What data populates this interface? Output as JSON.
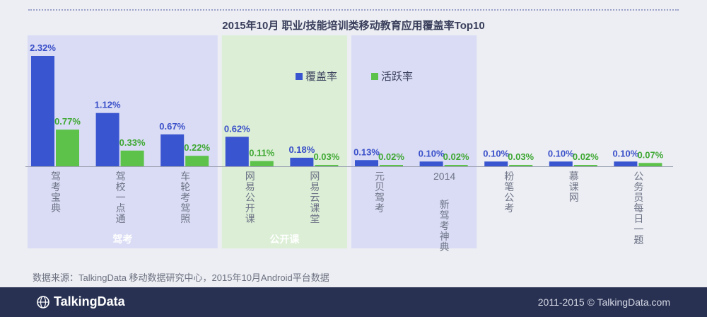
{
  "chart_data": {
    "type": "bar",
    "title": "2015年10月  职业/技能培训类移动教育应用覆盖率Top10",
    "categories": [
      "驾考宝典",
      "驾校一点通",
      "车轮考驾照",
      "网易公开课",
      "网易云课堂",
      "元贝驾考",
      "2014 新驾考神典",
      "粉笔公考",
      "慕课网",
      "公务员每日一题"
    ],
    "series": [
      {
        "name": "覆盖率",
        "color": "#3a55d0",
        "values": [
          2.32,
          1.12,
          0.67,
          0.62,
          0.18,
          0.13,
          0.1,
          0.1,
          0.1,
          0.1
        ],
        "labels": [
          "2.32%",
          "1.12%",
          "0.67%",
          "0.62%",
          "0.18%",
          "0.13%",
          "0.10%",
          "0.10%",
          "0.10%",
          "0.10%"
        ]
      },
      {
        "name": "活跃率",
        "color": "#5cc24a",
        "values": [
          0.77,
          0.33,
          0.22,
          0.11,
          0.03,
          0.02,
          0.02,
          0.03,
          0.02,
          0.07
        ],
        "labels": [
          "0.77%",
          "0.33%",
          "0.22%",
          "0.11%",
          "0.03%",
          "0.02%",
          "0.02%",
          "0.03%",
          "0.02%",
          "0.07%"
        ]
      }
    ],
    "groups": [
      {
        "label": "驾考",
        "from": 0,
        "to": 2,
        "color": "#d9dcf4"
      },
      {
        "label": "公开课",
        "from": 3,
        "to": 4,
        "color": "#dcefd6"
      },
      {
        "label": "",
        "from": 5,
        "to": 6,
        "color": "#d9dcf4"
      }
    ],
    "ylim": [
      0,
      2.32
    ],
    "legend_position": "top-center",
    "grid": false
  },
  "source": "数据来源：TalkingData 移动数据研究中心，2015年10月Android平台数据",
  "footer": {
    "logo_text": "TalkingData",
    "copyright": "2011-2015 © TalkingData.com"
  }
}
